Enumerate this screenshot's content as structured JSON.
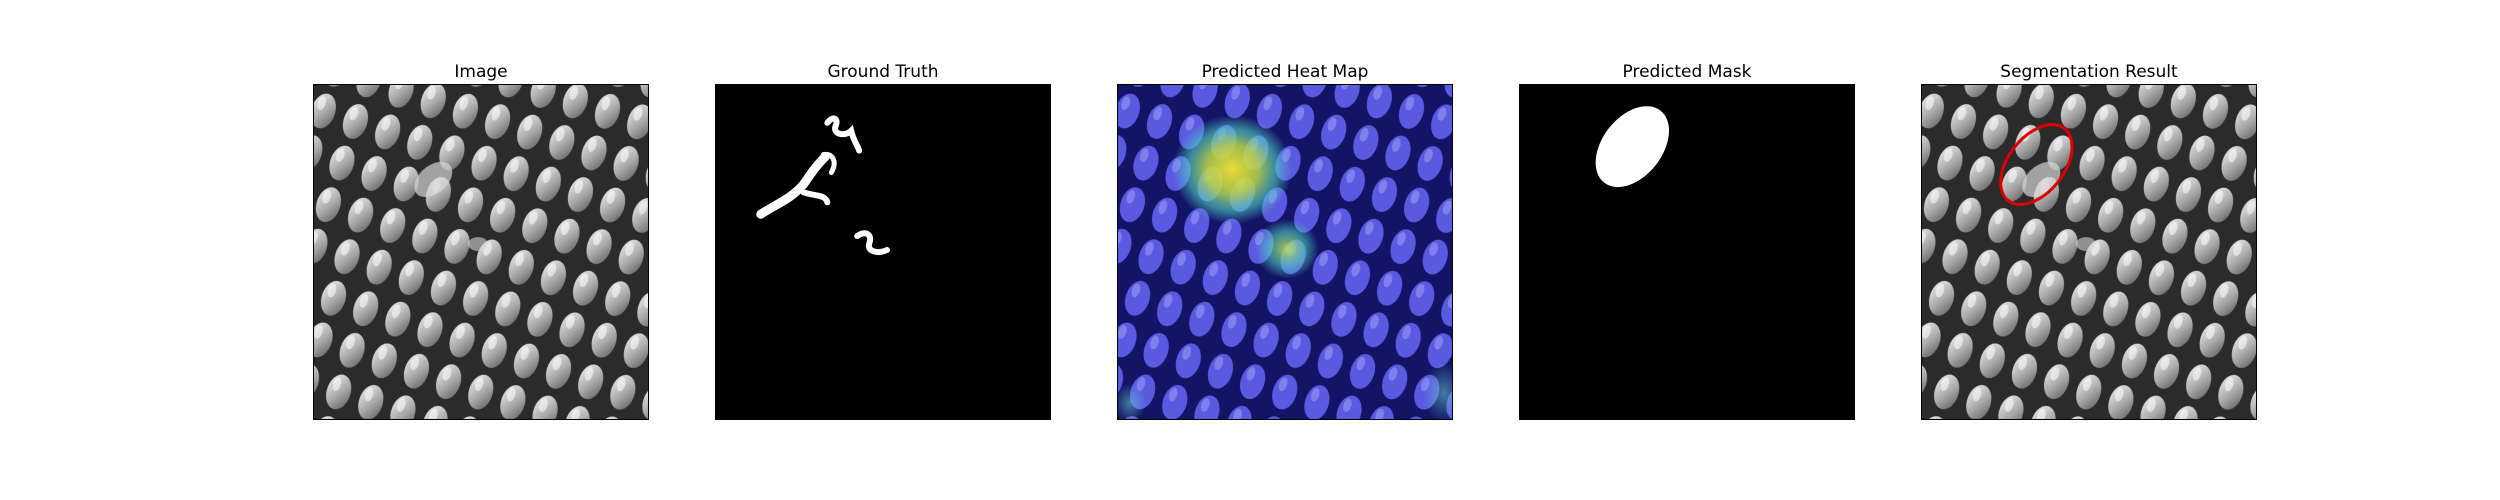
{
  "panels": [
    {
      "title": "Image"
    },
    {
      "title": "Ground Truth"
    },
    {
      "title": "Predicted Heat Map"
    },
    {
      "title": "Predicted Mask"
    },
    {
      "title": "Segmentation Result"
    }
  ],
  "colors": {
    "background": "#ffffff",
    "mask_background": "#000000",
    "mask_foreground": "#ffffff",
    "contour": "#e00000",
    "heat_low": "#3a3ad6",
    "heat_high": "#f2e632"
  }
}
